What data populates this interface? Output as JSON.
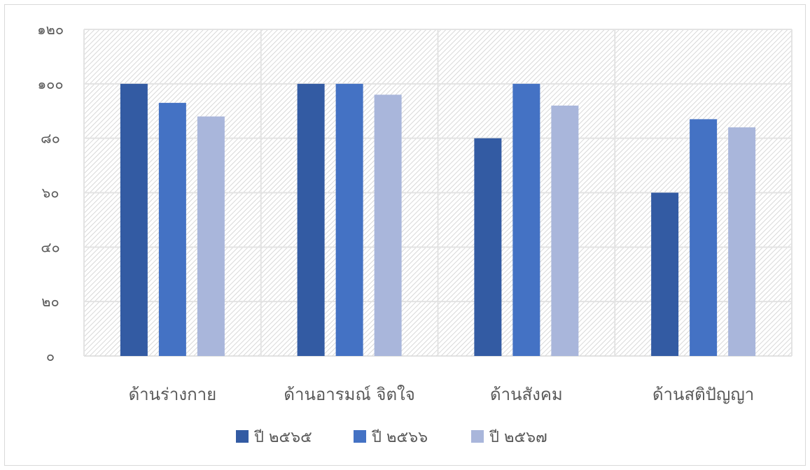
{
  "chart_data": {
    "type": "bar",
    "categories": [
      "ด้านร่างกาย",
      "ด้านอารมณ์ จิตใจ",
      "ด้านสังคม",
      "ด้านสติปัญญา"
    ],
    "series": [
      {
        "name": "ปี ๒๕๖๕",
        "color": "#335ba3",
        "values": [
          100,
          100,
          80,
          60
        ]
      },
      {
        "name": "ปี ๒๕๖๖",
        "color": "#4472c4",
        "values": [
          93,
          100,
          100,
          87
        ]
      },
      {
        "name": "ปี ๒๕๖๗",
        "color": "#a9b6db",
        "values": [
          88,
          96,
          92,
          84
        ]
      }
    ],
    "y_ticks": [
      "๐",
      "๒๐",
      "๔๐",
      "๖๐",
      "๘๐",
      "๑๐๐",
      "๑๒๐"
    ],
    "ylim": [
      0,
      120
    ],
    "y_step": 20,
    "grid": true,
    "legend_position": "bottom"
  }
}
